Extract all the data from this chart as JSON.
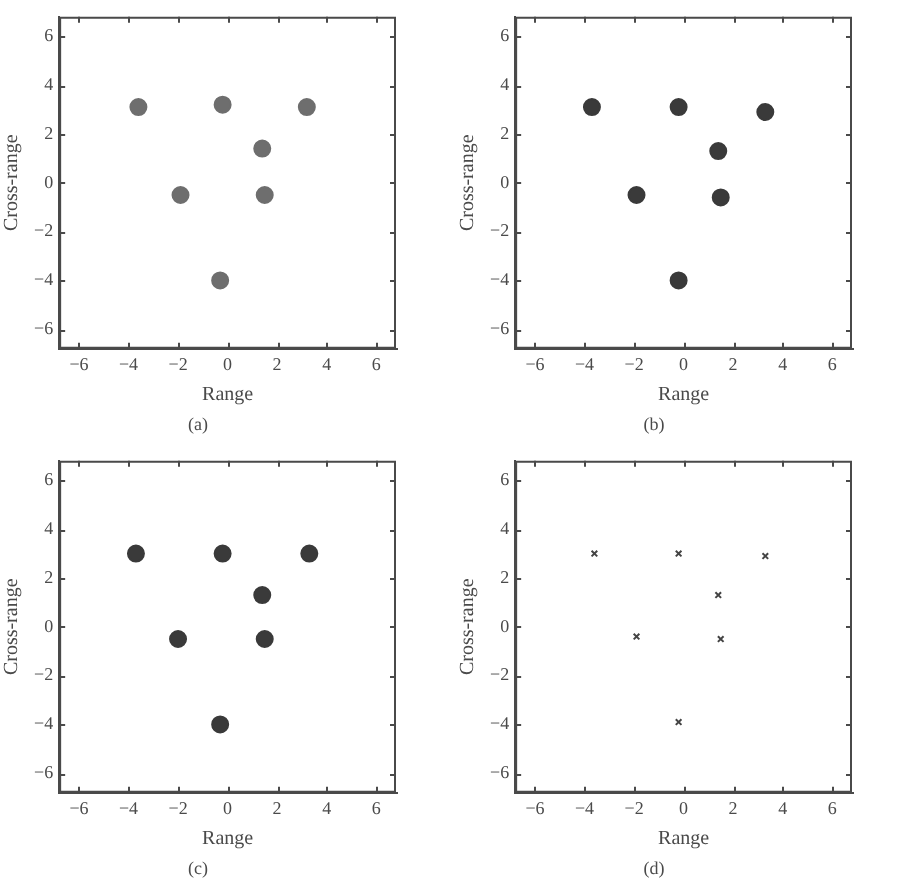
{
  "chart_data": [
    {
      "type": "scatter",
      "title": "(a)",
      "xlabel": "Range",
      "ylabel": "Cross-range",
      "x": [
        -3.6,
        -0.2,
        3.2,
        1.4,
        -1.9,
        1.5,
        -0.3
      ],
      "values": [
        3.1,
        3.2,
        3.1,
        1.4,
        -0.5,
        -0.5,
        -4.0
      ],
      "color": "#6e6e6e",
      "marker": "circle",
      "xlim": [
        -6.8,
        6.8
      ],
      "ylim": [
        -6.8,
        6.8
      ],
      "xticks": [
        {
          "value": -6,
          "label": "−6"
        },
        {
          "value": -4,
          "label": "−4"
        },
        {
          "value": -2,
          "label": "−2"
        },
        0,
        2,
        4,
        6
      ],
      "yticks": [
        {
          "value": -6,
          "label": "−6"
        },
        {
          "value": -4,
          "label": "−4"
        },
        {
          "value": -2,
          "label": "−2"
        },
        0,
        2,
        4,
        6
      ]
    },
    {
      "type": "scatter",
      "title": "(b)",
      "xlabel": "Range",
      "ylabel": "Cross-range",
      "x": [
        -3.7,
        -0.2,
        3.3,
        1.4,
        -1.9,
        1.5,
        -0.2
      ],
      "values": [
        3.1,
        3.1,
        2.9,
        1.3,
        -0.5,
        -0.6,
        -4.0
      ],
      "color": "#3a3a3a",
      "marker": "circle",
      "xlim": [
        -6.8,
        6.8
      ],
      "ylim": [
        -6.8,
        6.8
      ],
      "xticks": [
        {
          "value": -6,
          "label": "−6"
        },
        {
          "value": -4,
          "label": "−4"
        },
        {
          "value": -2,
          "label": "−2"
        },
        0,
        2,
        4,
        6
      ],
      "yticks": [
        {
          "value": -6,
          "label": "−6"
        },
        {
          "value": -4,
          "label": "−4"
        },
        {
          "value": -2,
          "label": "−2"
        },
        0,
        2,
        4,
        6
      ]
    },
    {
      "type": "scatter",
      "title": "(c)",
      "xlabel": "Range",
      "ylabel": "Cross-range",
      "x": [
        -3.7,
        -0.2,
        3.3,
        1.4,
        -2.0,
        1.5,
        -0.3
      ],
      "values": [
        3.0,
        3.0,
        3.0,
        1.3,
        -0.5,
        -0.5,
        -4.0
      ],
      "color": "#3a3a3a",
      "marker": "circle",
      "xlim": [
        -6.8,
        6.8
      ],
      "ylim": [
        -6.8,
        6.8
      ],
      "xticks": [
        {
          "value": -6,
          "label": "−6"
        },
        {
          "value": -4,
          "label": "−4"
        },
        {
          "value": -2,
          "label": "−2"
        },
        0,
        2,
        4,
        6
      ],
      "yticks": [
        {
          "value": -6,
          "label": "−6"
        },
        {
          "value": -4,
          "label": "−4"
        },
        {
          "value": -2,
          "label": "−2"
        },
        0,
        2,
        4,
        6
      ]
    },
    {
      "type": "scatter",
      "title": "(d)",
      "xlabel": "Range",
      "ylabel": "Cross-range",
      "x": [
        -3.6,
        -0.2,
        3.3,
        1.4,
        -1.9,
        1.5,
        -0.2
      ],
      "values": [
        3.0,
        3.0,
        2.9,
        1.3,
        -0.4,
        -0.5,
        -3.9
      ],
      "color": "#444444",
      "marker": "cross",
      "xlim": [
        -6.8,
        6.8
      ],
      "ylim": [
        -6.8,
        6.8
      ],
      "xticks": [
        {
          "value": -6,
          "label": "−6"
        },
        {
          "value": -4,
          "label": "−4"
        },
        {
          "value": -2,
          "label": "−2"
        },
        0,
        2,
        4,
        6
      ],
      "yticks": [
        {
          "value": -6,
          "label": "−6"
        },
        {
          "value": -4,
          "label": "−4"
        },
        {
          "value": -2,
          "label": "−2"
        },
        0,
        2,
        4,
        6
      ]
    }
  ]
}
